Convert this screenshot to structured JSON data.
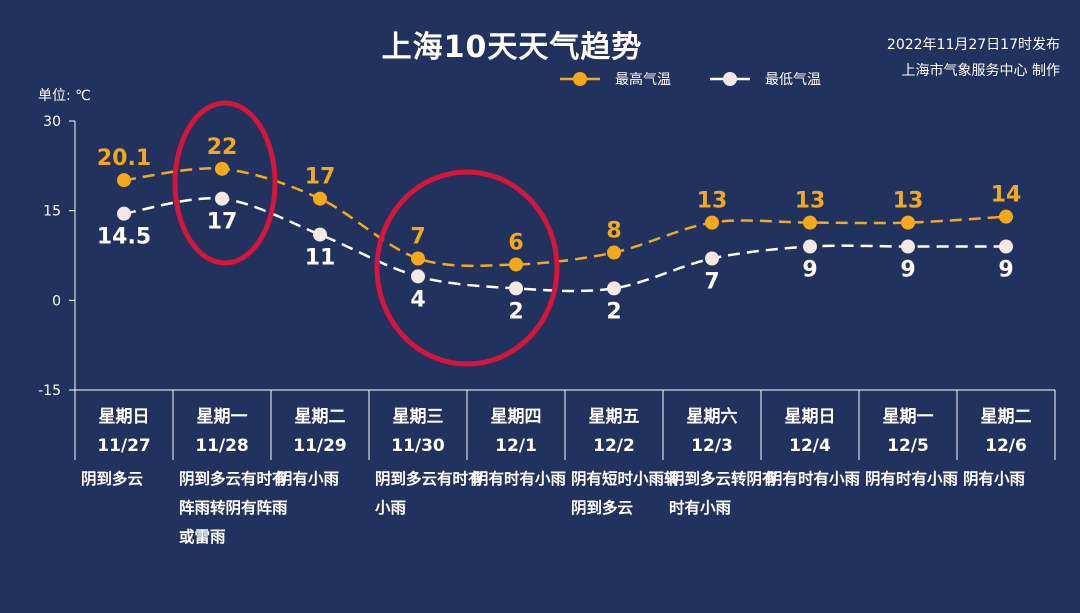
{
  "header": {
    "title": "上海10天天气趋势",
    "issued": "2022年11月27日17时发布",
    "publisher": "上海市气象服务中心 制作",
    "unit": "单位: ℃"
  },
  "colors": {
    "background": "#21325f",
    "high": "#f5a81c",
    "low": "#ffffff",
    "low_marker": "#f3e8e6",
    "highlight_circle": "#d5153a"
  },
  "chart_data": {
    "type": "line",
    "categories": [
      "星期日 11/27",
      "星期一 11/28",
      "星期二 11/29",
      "星期三 11/30",
      "星期四 12/1",
      "星期五 12/2",
      "星期六 12/3",
      "星期日 12/4",
      "星期一 12/5",
      "星期二 12/6"
    ],
    "weekdays": [
      "星期日",
      "星期一",
      "星期二",
      "星期三",
      "星期四",
      "星期五",
      "星期六",
      "星期日",
      "星期一",
      "星期二"
    ],
    "dates": [
      "11/27",
      "11/28",
      "11/29",
      "11/30",
      "12/1",
      "12/2",
      "12/3",
      "12/4",
      "12/5",
      "12/6"
    ],
    "weather": [
      "阴到多云",
      "阴到多云有时有阵雨转阴有阵雨或雷雨",
      "阴有小雨",
      "阴到多云有时有小雨",
      "阴有时有小雨",
      "阴有短时小雨转阴到多云",
      "阴到多云转阴有时有小雨",
      "阴有时有小雨",
      "阴有时有小雨",
      "阴有小雨"
    ],
    "series": [
      {
        "name": "最高气温",
        "values": [
          20.1,
          22,
          17,
          7,
          6,
          8,
          13,
          13,
          13,
          14
        ],
        "labels": [
          "20.1",
          "22",
          "17",
          "7",
          "6",
          "8",
          "13",
          "13",
          "13",
          "14"
        ]
      },
      {
        "name": "最低气温",
        "values": [
          14.5,
          17,
          11,
          4,
          2,
          2,
          7,
          9,
          9,
          9
        ],
        "labels": [
          "14.5",
          "17",
          "11",
          "4",
          "2",
          "2",
          "7",
          "9",
          "9",
          "9"
        ]
      }
    ],
    "yticks": [
      "30",
      "15",
      "0",
      "-15"
    ],
    "ylim": [
      -15,
      30
    ],
    "legend_position": "top-right",
    "highlights": [
      "星期一 11/28",
      "星期三 11/30 – 星期四 12/1"
    ]
  }
}
